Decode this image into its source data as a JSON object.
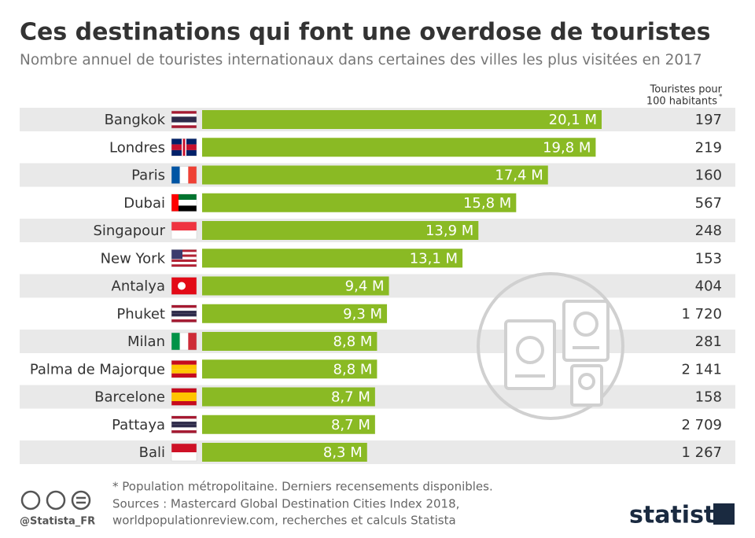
{
  "chart_data": {
    "type": "bar",
    "title": "Ces destinations qui font une overdose de touristes",
    "subtitle": "Nombre annuel de touristes internationaux dans certaines des villes les plus visitées en 2017",
    "categories": [
      "Bangkok",
      "Londres",
      "Paris",
      "Dubai",
      "Singapour",
      "New York",
      "Antalya",
      "Phuket",
      "Milan",
      "Palma de Majorque",
      "Barcelone",
      "Pattaya",
      "Bali"
    ],
    "values": [
      20.1,
      19.8,
      17.4,
      15.8,
      13.9,
      13.1,
      9.4,
      9.3,
      8.8,
      8.8,
      8.7,
      8.7,
      8.3
    ],
    "value_labels": [
      "20,1 M",
      "19,8 M",
      "17,4 M",
      "15,8 M",
      "13,9 M",
      "13,1 M",
      "9,4 M",
      "9,3 M",
      "8,8 M",
      "8,8 M",
      "8,7 M",
      "8,7 M",
      "8,3 M"
    ],
    "color": "#8aba24",
    "column": {
      "title_lines": [
        "Touristes pour",
        "100 habitants"
      ],
      "mark": "*",
      "values": [
        197,
        219,
        160,
        567,
        248,
        153,
        404,
        1720,
        281,
        2141,
        158,
        2709,
        1267
      ],
      "value_labels": [
        "197",
        "219",
        "160",
        "567",
        "248",
        "153",
        "404",
        "1 720",
        "281",
        "2 141",
        "158",
        "2 709",
        "1 267"
      ]
    }
  },
  "footer": {
    "note": "* Population métropolitaine. Derniers recensements disponibles.",
    "sources": [
      "Sources : Mastercard Global Destination Cities Index 2018,",
      "worldpopulationreview.com, recherches et calculs Statista"
    ],
    "handle": "@Statista_FR",
    "logo": "statista"
  }
}
